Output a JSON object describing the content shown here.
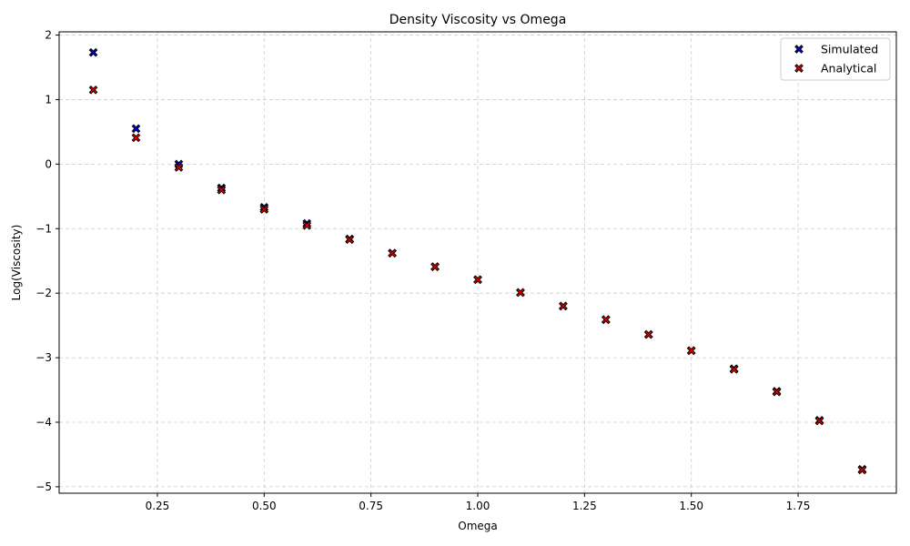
{
  "chart_data": {
    "type": "scatter",
    "title": "Density Viscosity vs Omega",
    "xlabel": "Omega",
    "ylabel": "Log(Viscosity)",
    "xlim": [
      0.02,
      1.98
    ],
    "ylim": [
      -5.1,
      2.05
    ],
    "xticks": [
      0.25,
      0.5,
      0.75,
      1.0,
      1.25,
      1.5,
      1.75
    ],
    "xtick_labels": [
      "0.25",
      "0.50",
      "0.75",
      "1.00",
      "1.25",
      "1.50",
      "1.75"
    ],
    "yticks": [
      2,
      1,
      0,
      -1,
      -2,
      -3,
      -4,
      -5
    ],
    "ytick_labels": [
      "2",
      "1",
      "0",
      "−1",
      "−2",
      "−3",
      "−4",
      "−5"
    ],
    "grid": true,
    "legend_position": "top-right",
    "x": [
      0.1,
      0.2,
      0.3,
      0.4,
      0.5,
      0.6,
      0.7,
      0.8,
      0.9,
      1.0,
      1.1,
      1.2,
      1.3,
      1.4,
      1.5,
      1.6,
      1.7,
      1.8,
      1.9
    ],
    "series": [
      {
        "name": "Simulated",
        "color": "#0000cc",
        "marker": "x-filled",
        "values": [
          1.73,
          0.55,
          0.0,
          -0.37,
          -0.67,
          -0.92,
          -1.16,
          -1.38,
          -1.59,
          -1.79,
          -1.99,
          -2.2,
          -2.41,
          -2.64,
          -2.89,
          -3.17,
          -3.52,
          -3.97,
          -4.73
        ]
      },
      {
        "name": "Analytical",
        "color": "#dd0000",
        "marker": "x-filled",
        "values": [
          1.15,
          0.41,
          -0.05,
          -0.4,
          -0.7,
          -0.95,
          -1.17,
          -1.38,
          -1.59,
          -1.79,
          -1.99,
          -2.2,
          -2.41,
          -2.64,
          -2.89,
          -3.18,
          -3.53,
          -3.98,
          -4.74
        ]
      }
    ]
  }
}
